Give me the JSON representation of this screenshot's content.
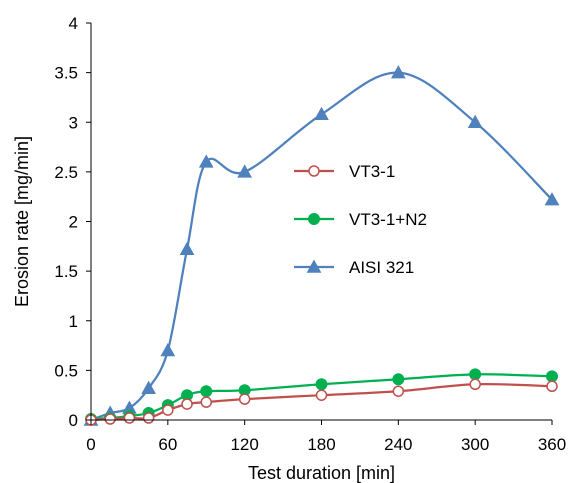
{
  "chart_data": {
    "type": "line",
    "xlabel": "Test duration  [min]",
    "ylabel": "Erosion rate [mg/min]",
    "xlim": [
      0,
      360
    ],
    "ylim": [
      0,
      4
    ],
    "xticks": [
      0,
      60,
      120,
      180,
      240,
      300,
      360
    ],
    "yticks": [
      0,
      0.5,
      1,
      1.5,
      2,
      2.5,
      3,
      3.5,
      4
    ],
    "xtick_labels": [
      "0",
      "60",
      "120",
      "180",
      "240",
      "300",
      "360"
    ],
    "ytick_labels": [
      "0",
      "0.5",
      "1",
      "1.5",
      "2",
      "2.5",
      "3",
      "3.5",
      "4"
    ],
    "grid": false,
    "legend_position": "center-right",
    "series": [
      {
        "name": "VT3-1",
        "color": "#c0504d",
        "marker": "circle-open",
        "x": [
          0,
          15,
          30,
          45,
          60,
          75,
          90,
          120,
          180,
          240,
          300,
          360
        ],
        "y": [
          0.0,
          0.01,
          0.02,
          0.02,
          0.1,
          0.16,
          0.18,
          0.21,
          0.25,
          0.29,
          0.36,
          0.34
        ]
      },
      {
        "name": "VT3-1+N2",
        "color": "#00b050",
        "marker": "circle-filled",
        "x": [
          0,
          15,
          30,
          45,
          60,
          75,
          90,
          120,
          180,
          240,
          300,
          360
        ],
        "y": [
          0.01,
          0.02,
          0.04,
          0.07,
          0.15,
          0.25,
          0.29,
          0.3,
          0.36,
          0.41,
          0.46,
          0.44
        ]
      },
      {
        "name": "AISI 321",
        "color": "#4f81bd",
        "marker": "triangle",
        "x": [
          0,
          15,
          30,
          45,
          60,
          75,
          90,
          120,
          180,
          240,
          300,
          360
        ],
        "y": [
          0.0,
          0.07,
          0.12,
          0.32,
          0.7,
          1.72,
          2.6,
          2.5,
          3.08,
          3.5,
          3.0,
          2.22
        ]
      }
    ]
  }
}
